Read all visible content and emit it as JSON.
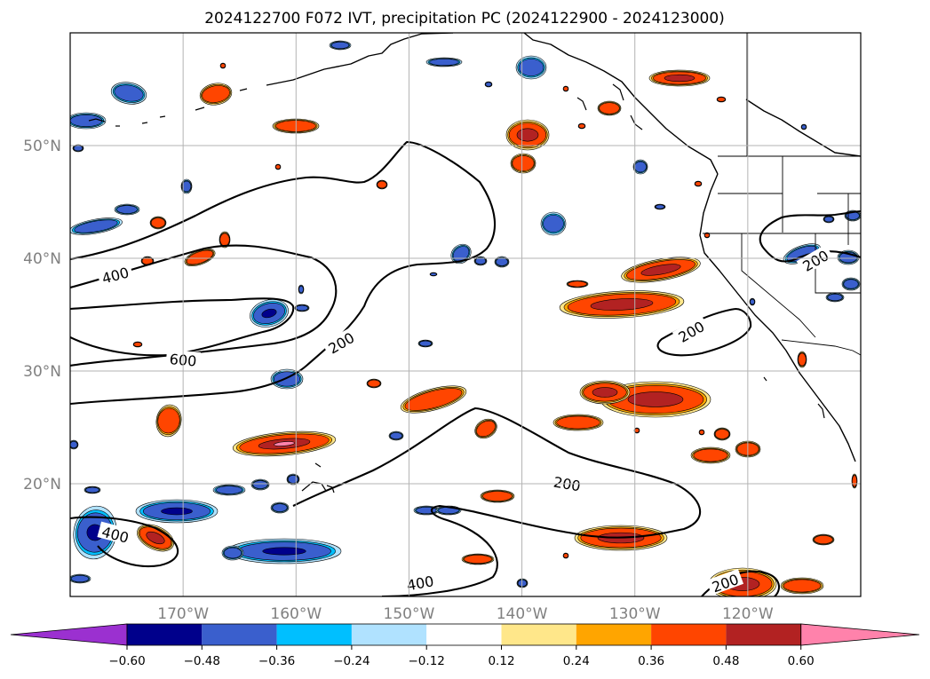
{
  "chart_data": {
    "type": "contour-map",
    "title": "2024122700 F072 IVT, precipitation PC (2024122900 - 2024123000)",
    "lon_range": [
      -180,
      -110
    ],
    "lat_range": [
      10,
      60
    ],
    "lon_ticks": [
      -170,
      -160,
      -150,
      -140,
      -130,
      -120
    ],
    "lat_ticks": [
      20,
      30,
      40,
      50
    ],
    "lon_tick_labels": [
      "170°W",
      "160°W",
      "150°W",
      "140°W",
      "130°W",
      "120°W"
    ],
    "lat_tick_labels": [
      "20°N",
      "30°N",
      "40°N",
      "50°N"
    ],
    "grid": true,
    "colorbar": {
      "orientation": "horizontal",
      "extend": "both",
      "levels": [
        -0.6,
        -0.48,
        -0.36,
        -0.24,
        -0.12,
        0.12,
        0.24,
        0.36,
        0.48,
        0.6
      ],
      "tick_labels": [
        "−0.60",
        "−0.48",
        "−0.36",
        "−0.24",
        "−0.12",
        "0.12",
        "0.24",
        "0.36",
        "0.48",
        "0.60"
      ],
      "colors": [
        "#9b30d0",
        "#00008b",
        "#3a5fcd",
        "#00bfff",
        "#b0e2ff",
        "#ffffff",
        "#ffe78a",
        "#ffa500",
        "#ff4500",
        "#b22222",
        "#ff82ab"
      ]
    },
    "ivt_contour_labels": [
      {
        "value": "400",
        "lon": -176,
        "lat": 38.5
      },
      {
        "value": "600",
        "lon": -170,
        "lat": 31
      },
      {
        "value": "200",
        "lon": -156,
        "lat": 32.5
      },
      {
        "value": "200",
        "lon": -125,
        "lat": 33.5
      },
      {
        "value": "200",
        "lon": -114,
        "lat": 39.8
      },
      {
        "value": "200",
        "lon": -136,
        "lat": 20
      },
      {
        "value": "200",
        "lon": -122,
        "lat": 11.2
      },
      {
        "value": "400",
        "lon": -176,
        "lat": 15.5
      },
      {
        "value": "400",
        "lon": -149,
        "lat": 11.2
      }
    ]
  }
}
